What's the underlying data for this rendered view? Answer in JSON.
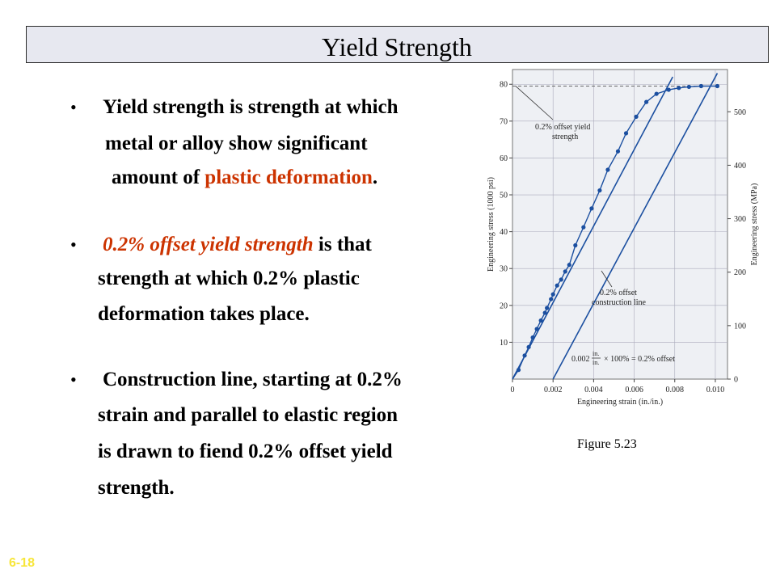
{
  "slide": {
    "title": "Yield Strength",
    "page_tag": "6-18",
    "figure_caption": "Figure 5.23"
  },
  "bullets": [
    {
      "lines": [
        [
          {
            "text": "Yield strength is strength at which"
          }
        ],
        [
          {
            "text": "metal or alloy show significant"
          }
        ],
        [
          {
            "text": "amount of "
          },
          {
            "text": "plastic deformation",
            "style": "red"
          },
          {
            "text": "."
          }
        ]
      ]
    },
    {
      "lines": [
        [
          {
            "text": "0.2% offset yield strength",
            "style": "red-italic"
          },
          {
            "text": " is that"
          }
        ],
        [
          {
            "text": "strength at which 0.2% plastic"
          }
        ],
        [
          {
            "text": "deformation takes place."
          }
        ]
      ]
    },
    {
      "lines": [
        [
          {
            "text": "Construction line, starting at 0.2%"
          }
        ],
        [
          {
            "text": "strain and parallel to elastic region"
          }
        ],
        [
          {
            "text": "is drawn to fiend 0.2% offset yield"
          }
        ],
        [
          {
            "text": "strength."
          }
        ]
      ]
    }
  ],
  "chart_data": {
    "type": "scatter",
    "xlabel": "Engineering strain (in./in.)",
    "ylabel": "Engineering stress (1000 psi)",
    "ylabel_right": "Engineering stress (MPa)",
    "xlim": [
      0,
      0.0106
    ],
    "ylim": [
      0,
      84
    ],
    "ylim_right_mpa": [
      0,
      579
    ],
    "x_ticks": [
      0,
      0.002,
      0.004,
      0.006,
      0.008,
      0.01
    ],
    "x_tick_labels": [
      "0",
      "0.002",
      "0.004",
      "0.006",
      "0.008",
      "0.010"
    ],
    "y_ticks": [
      10,
      20,
      30,
      40,
      50,
      60,
      70,
      80
    ],
    "y_ticks_right_mpa": [
      0,
      100,
      200,
      300,
      400,
      500
    ],
    "grid": true,
    "series": [
      {
        "kind": "points-with-curve",
        "color": "#1b4fa0",
        "x": [
          0.0003,
          0.0006,
          0.0008,
          0.001,
          0.0012,
          0.0014,
          0.0016,
          0.0017,
          0.0019,
          0.002,
          0.0022,
          0.0024,
          0.0026,
          0.0028,
          0.0031,
          0.0035,
          0.0039,
          0.0043,
          0.0047,
          0.0052,
          0.0056,
          0.0061,
          0.0066,
          0.0071,
          0.0077,
          0.0082,
          0.0087,
          0.0093,
          0.0101
        ],
        "y": [
          2.5,
          6.4,
          8.7,
          11.3,
          13.6,
          15.9,
          18.0,
          19.3,
          21.7,
          23.0,
          25.4,
          27.0,
          29.2,
          31.0,
          36.3,
          41.2,
          46.3,
          51.2,
          56.8,
          61.8,
          66.7,
          71.2,
          75.2,
          77.4,
          78.5,
          79.0,
          79.3,
          79.5,
          79.5
        ]
      },
      {
        "kind": "line",
        "name": "elastic-line",
        "color": "#1b4fa0",
        "x": [
          0,
          0.0079
        ],
        "y": [
          0,
          82
        ]
      },
      {
        "kind": "line",
        "name": "offset-construction-line",
        "color": "#1b4fa0",
        "x": [
          0.002,
          0.0101
        ],
        "y": [
          0,
          83
        ]
      }
    ],
    "reference_line": {
      "y": 79.5,
      "style": "dashed"
    },
    "annotations": [
      {
        "lines": [
          "0.2% offset yield",
          "strength"
        ]
      },
      {
        "lines": [
          "0.2% offset",
          "construction line"
        ]
      },
      {
        "parts": [
          "0.002",
          "in.",
          "in.",
          "× 100% = 0.2% offset"
        ]
      }
    ]
  }
}
